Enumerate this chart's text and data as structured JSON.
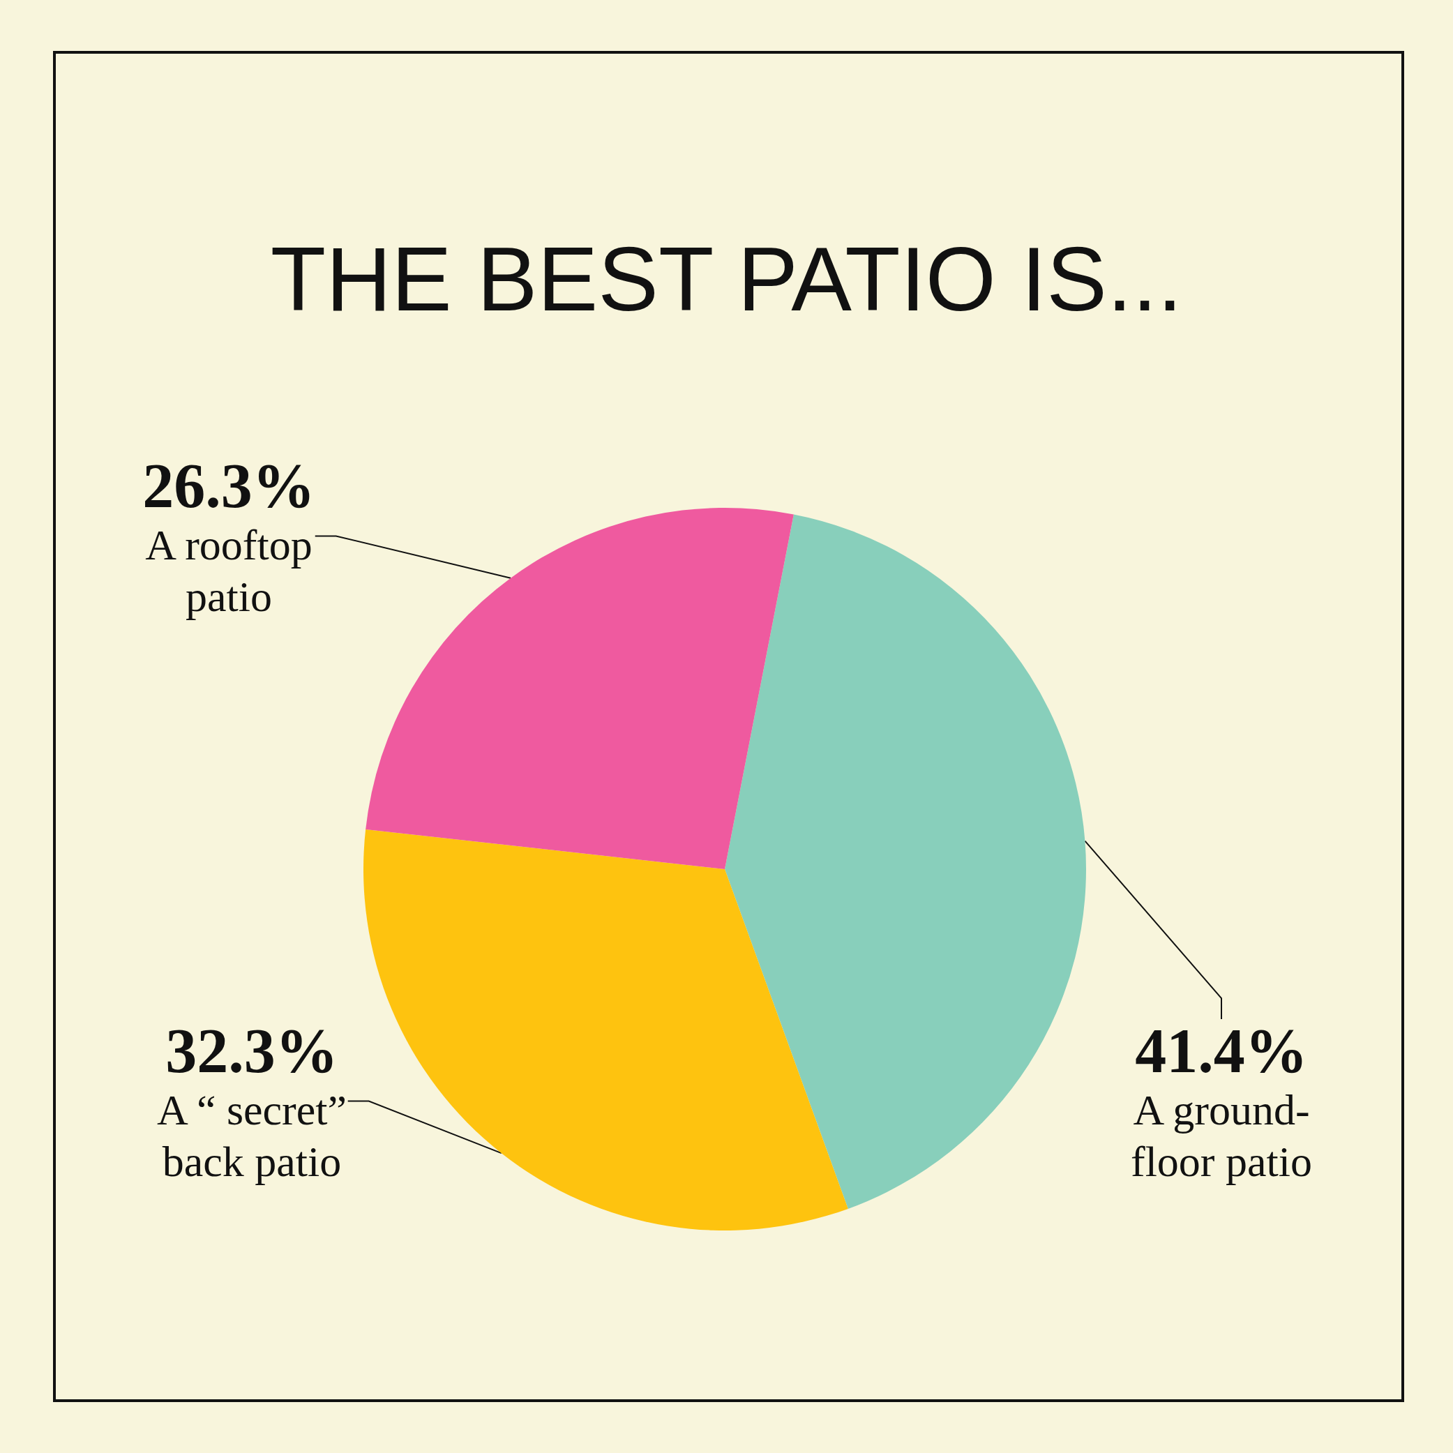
{
  "chart_data": {
    "type": "pie",
    "title": "THE BEST PATIO IS...",
    "categories": [
      "A ground-floor patio",
      "A “ secret” back patio",
      "A rooftop patio"
    ],
    "values": [
      41.4,
      32.3,
      26.3
    ],
    "value_labels": [
      "41.4%",
      "32.3%",
      "26.3%"
    ],
    "colors": [
      "#88cfbb",
      "#fec30f",
      "#ef5a9f"
    ],
    "legend": false
  }
}
